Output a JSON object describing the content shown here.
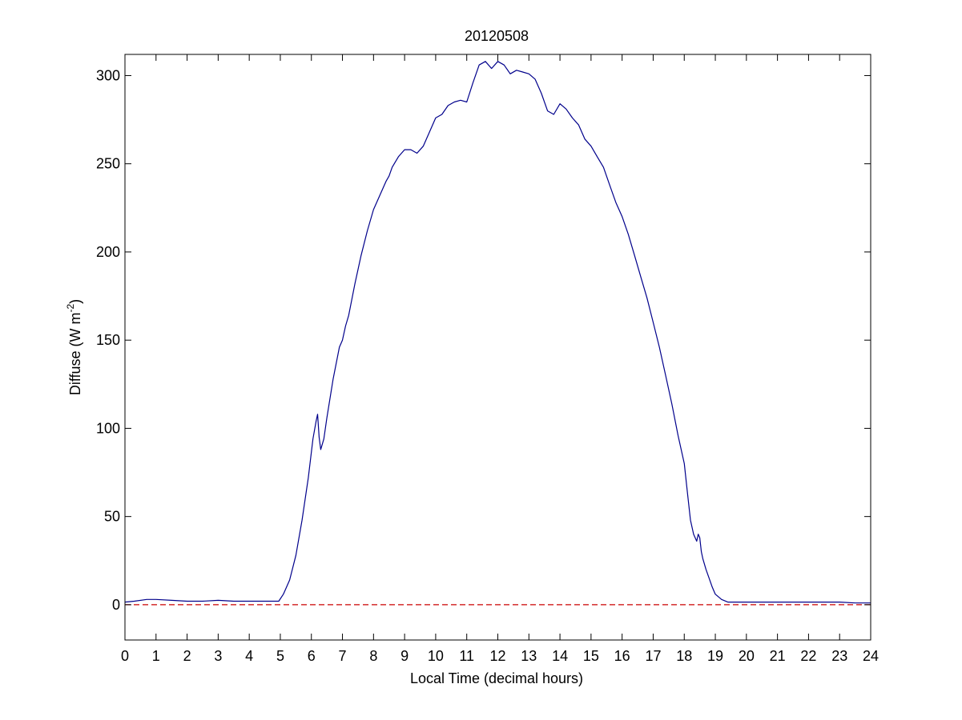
{
  "chart_data": {
    "type": "line",
    "title": "20120508",
    "xlabel": "Local Time (decimal hours)",
    "ylabel": {
      "prefix": "Diffuse (W m",
      "superscript": "-2",
      "suffix": ")"
    },
    "xlim": [
      0,
      24
    ],
    "ylim": [
      -20,
      312
    ],
    "xticks": [
      0,
      1,
      2,
      3,
      4,
      5,
      6,
      7,
      8,
      9,
      10,
      11,
      12,
      13,
      14,
      15,
      16,
      17,
      18,
      19,
      20,
      21,
      22,
      23,
      24
    ],
    "yticks": [
      0,
      50,
      100,
      150,
      200,
      250,
      300
    ],
    "grid": false,
    "colors": {
      "series": "#00008b",
      "reference": "#cc0000",
      "axes": "#000000",
      "background": "#ffffff"
    },
    "reference_line": {
      "y": 0,
      "style": "dashed"
    },
    "series": [
      {
        "x": [
          0,
          0.3,
          0.7,
          1.0,
          1.5,
          2.0,
          2.5,
          3.0,
          3.5,
          4.0,
          4.5,
          4.8,
          4.95,
          5.1,
          5.3,
          5.5,
          5.7,
          5.9,
          6.05,
          6.15,
          6.2,
          6.25,
          6.3,
          6.4,
          6.5,
          6.7,
          6.9,
          7.0,
          7.1,
          7.2,
          7.4,
          7.6,
          7.8,
          8.0,
          8.2,
          8.4,
          8.5,
          8.6,
          8.8,
          9.0,
          9.2,
          9.4,
          9.6,
          9.8,
          10.0,
          10.2,
          10.4,
          10.6,
          10.8,
          11.0,
          11.2,
          11.4,
          11.6,
          11.8,
          12.0,
          12.2,
          12.4,
          12.6,
          12.8,
          13.0,
          13.2,
          13.4,
          13.6,
          13.8,
          14.0,
          14.2,
          14.4,
          14.6,
          14.8,
          15.0,
          15.2,
          15.4,
          15.6,
          15.8,
          16.0,
          16.2,
          16.4,
          16.6,
          16.8,
          17.0,
          17.2,
          17.4,
          17.6,
          17.8,
          18.0,
          18.1,
          18.2,
          18.3,
          18.4,
          18.45,
          18.5,
          18.55,
          18.6,
          18.7,
          18.8,
          18.9,
          19.0,
          19.2,
          19.4,
          19.6,
          20.0,
          20.5,
          21.0,
          21.5,
          22.0,
          22.5,
          23.0,
          23.5,
          24.0
        ],
        "y": [
          1.5,
          2,
          3,
          3,
          2.5,
          2,
          2,
          2.5,
          2,
          2,
          2,
          2,
          2,
          6,
          14,
          28,
          48,
          72,
          94,
          104,
          108,
          95,
          88,
          94,
          106,
          128,
          146,
          150,
          158,
          164,
          182,
          198,
          212,
          224,
          232,
          240,
          243,
          248,
          254,
          258,
          258,
          256,
          260,
          268,
          276,
          278,
          283,
          285,
          286,
          285,
          296,
          306,
          308,
          304,
          308,
          306,
          301,
          303,
          302,
          301,
          298,
          290,
          280,
          278,
          284,
          281,
          276,
          272,
          264,
          260,
          254,
          248,
          238,
          228,
          220,
          210,
          198,
          186,
          174,
          160,
          146,
          130,
          114,
          96,
          80,
          64,
          48,
          40,
          36,
          40,
          38,
          30,
          26,
          20,
          15,
          10,
          6,
          3,
          1.5,
          1.5,
          1.5,
          1.5,
          1.5,
          1.5,
          1.5,
          1.5,
          1.5,
          1,
          1
        ]
      }
    ]
  }
}
